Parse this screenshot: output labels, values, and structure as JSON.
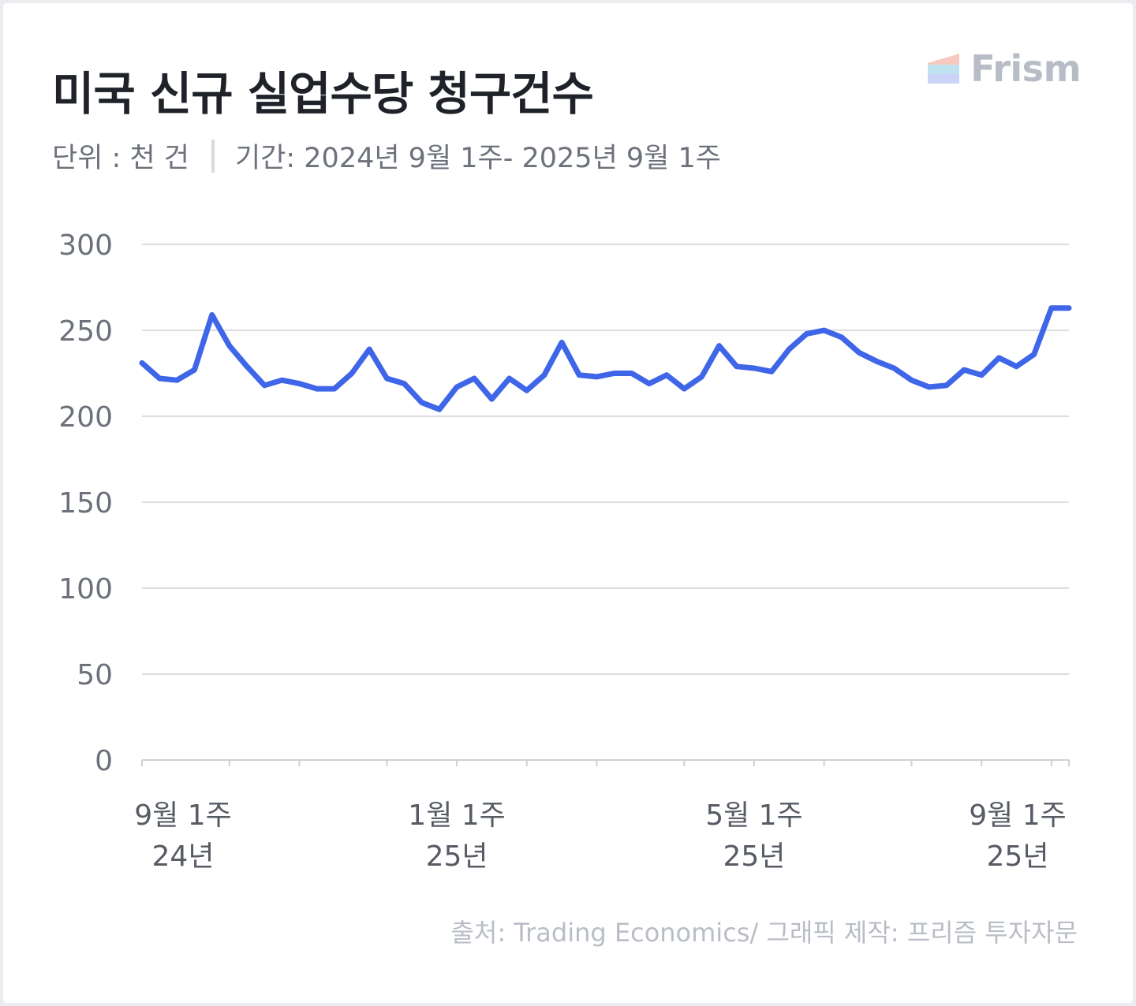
{
  "title": "미국 신규 실업수당 청구건수",
  "unit": "단위 : 천 건",
  "period": "기간: 2024년 9월  1주- 2025년 9월 1주",
  "logo": "Frism",
  "source": "출처: Trading Economics/ 그래픽 제작: 프리즘 투자자문",
  "colors": {
    "line": "#3f66e8",
    "grid": "#dcdde1",
    "axis_text": "#6c717b"
  },
  "chart_data": {
    "type": "line",
    "ylim": [
      0,
      300
    ],
    "yticks": [
      0,
      50,
      100,
      150,
      200,
      250,
      300
    ],
    "xlim": [
      "2024-08-31",
      "2025-09-06"
    ],
    "x_tick_dates": [
      "2024-08-31",
      "2024-10-05",
      "2024-11-02",
      "2024-12-07",
      "2025-01-04",
      "2025-02-01",
      "2025-03-01",
      "2025-04-05",
      "2025-05-03",
      "2025-05-31",
      "2025-07-05",
      "2025-08-02",
      "2025-08-30",
      "2025-09-06"
    ],
    "x_labels": [
      {
        "date": "2024-09-07",
        "line1": "9월 1주",
        "line2": "24년"
      },
      {
        "date": "2025-01-04",
        "line1": "1월 1주",
        "line2": "25년"
      },
      {
        "date": "2025-05-03",
        "line1": "5월 1주",
        "line2": "25년"
      },
      {
        "date": "2025-08-30",
        "line1": "9월 1주",
        "line2": "25년"
      }
    ],
    "grid": true,
    "series": [
      {
        "x": [
          "2024-08-31",
          "2024-09-07",
          "2024-09-14",
          "2024-09-21",
          "2024-09-28",
          "2024-10-05",
          "2024-10-12",
          "2024-10-19",
          "2024-10-26",
          "2024-11-02",
          "2024-11-09",
          "2024-11-16",
          "2024-11-23",
          "2024-11-30",
          "2024-12-07",
          "2024-12-14",
          "2024-12-21",
          "2024-12-28",
          "2025-01-04",
          "2025-01-11",
          "2025-01-18",
          "2025-01-25",
          "2025-02-01",
          "2025-02-08",
          "2025-02-15",
          "2025-02-22",
          "2025-03-01",
          "2025-03-08",
          "2025-03-15",
          "2025-03-22",
          "2025-03-29",
          "2025-04-05",
          "2025-04-12",
          "2025-04-19",
          "2025-04-26",
          "2025-05-03",
          "2025-05-10",
          "2025-05-17",
          "2025-05-24",
          "2025-05-31",
          "2025-06-07",
          "2025-06-14",
          "2025-06-21",
          "2025-06-28",
          "2025-07-05",
          "2025-07-12",
          "2025-07-19",
          "2025-07-26",
          "2025-08-02",
          "2025-08-09",
          "2025-08-16",
          "2025-08-23",
          "2025-08-30",
          "2025-09-06"
        ],
        "values": [
          231,
          222,
          221,
          227,
          259,
          241,
          229,
          218,
          221,
          219,
          216,
          216,
          225,
          239,
          222,
          219,
          208,
          204,
          217,
          222,
          210,
          222,
          215,
          224,
          243,
          224,
          223,
          225,
          225,
          219,
          224,
          216,
          223,
          241,
          229,
          228,
          226,
          239,
          248,
          250,
          246,
          237,
          232,
          228,
          221,
          217,
          218,
          227,
          224,
          234,
          229,
          236,
          263,
          263
        ]
      }
    ]
  }
}
